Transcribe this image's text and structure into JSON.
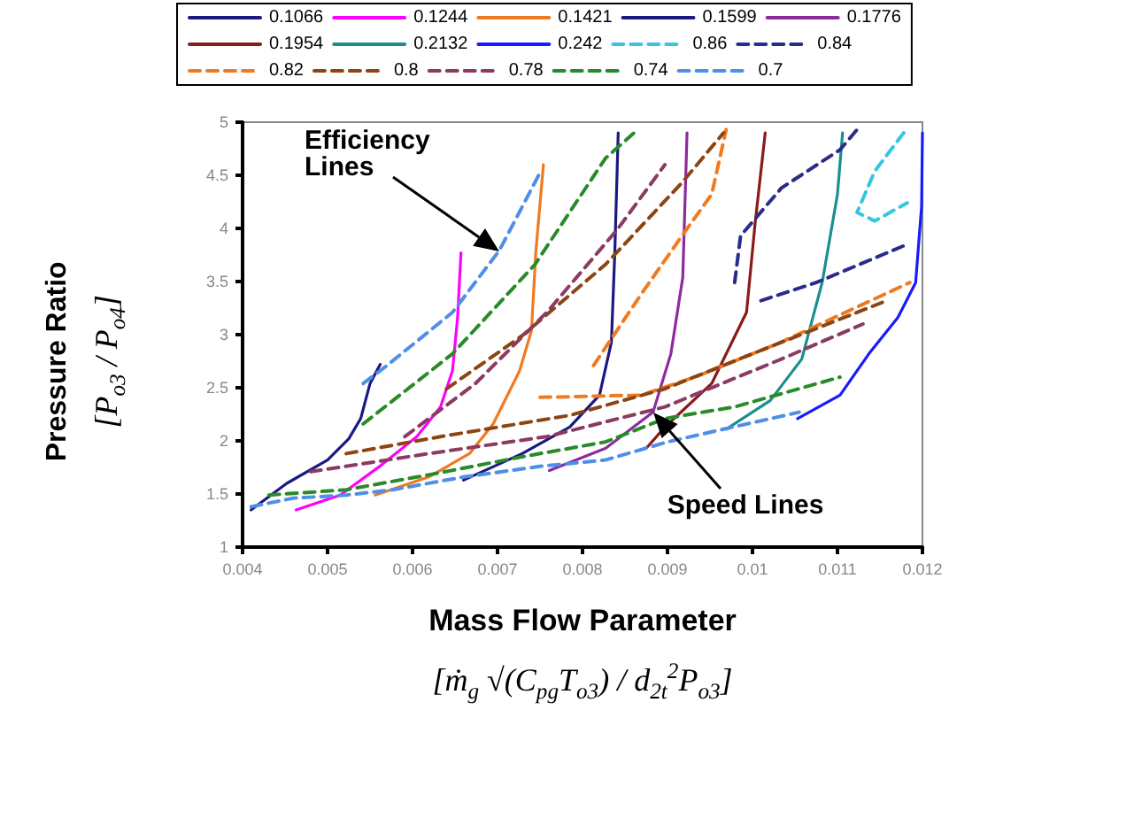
{
  "chart_data": {
    "type": "line",
    "xlabel": "Mass Flow Parameter [ṁ$_{g}$ √(C$_{pg}$T$_{o3}$) / d$_{2t}$$^{2}$P$_{o3}$]",
    "ylabel": "Pressure Ratio [P$_{o3}$ / P$_{o4}$]",
    "xlim": [
      0.004,
      0.012
    ],
    "xticks": [
      0.004,
      0.005,
      0.006,
      0.007,
      0.008,
      0.009,
      0.01,
      0.011,
      0.012
    ],
    "ylim": [
      1,
      5
    ],
    "yticks": [
      1,
      1.5,
      2,
      2.5,
      3,
      3.5,
      4,
      4.5,
      5
    ],
    "grid": false,
    "legend": "top",
    "marker": "none",
    "line_style": "solid",
    "annotations": [
      "Efficiency Lines",
      {
        "text": "Speed Lines",
        "x": 0.00883,
        "y": 2.27
      }
    ],
    "series": [
      {
        "name": "0.1066",
        "color": "#1a1a80",
        "x": [
          0.0041,
          0.00452,
          0.005,
          0.00525,
          0.00539,
          0.0055,
          0.00562
        ],
        "values": [
          1.35,
          1.6,
          1.82,
          2.02,
          2.21,
          2.54,
          2.72
        ]
      },
      {
        "name": "0.1244",
        "color": "#ff00ff",
        "x": [
          0.00463,
          0.00515,
          0.00563,
          0.00605,
          0.00633,
          0.00647,
          0.00653,
          0.00657
        ],
        "values": [
          1.35,
          1.49,
          1.77,
          2.04,
          2.32,
          2.66,
          3.16,
          3.77
        ]
      },
      {
        "name": "0.1421",
        "color": "#f07a20",
        "x": [
          0.00556,
          0.00619,
          0.00667,
          0.00695,
          0.00726,
          0.0074,
          0.00745,
          0.00754
        ],
        "values": [
          1.49,
          1.66,
          1.88,
          2.16,
          2.66,
          3.04,
          3.77,
          4.6
        ]
      },
      {
        "name": "0.1599",
        "color": "#1a1a80",
        "x": [
          0.0066,
          0.00729,
          0.00785,
          0.0082,
          0.00834,
          0.00838,
          0.00842
        ],
        "values": [
          1.63,
          1.88,
          2.13,
          2.43,
          2.93,
          3.77,
          4.9
        ]
      },
      {
        "name": "0.1776",
        "color": "#8e2a9e",
        "x": [
          0.00761,
          0.00827,
          0.00883,
          0.00904,
          0.00918,
          0.00923
        ],
        "values": [
          1.72,
          1.93,
          2.27,
          2.82,
          3.54,
          4.9
        ]
      },
      {
        "name": "0.1954",
        "color": "#8b1a1a",
        "x": [
          0.00876,
          0.00897,
          0.00952,
          0.00993,
          0.01003,
          0.01015
        ],
        "values": [
          1.94,
          2.13,
          2.54,
          3.21,
          4.04,
          4.9
        ]
      },
      {
        "name": "0.2132",
        "color": "#1a8f8f",
        "x": [
          0.00969,
          0.01021,
          0.01058,
          0.01082,
          0.011,
          0.01106
        ],
        "values": [
          2.11,
          2.38,
          2.77,
          3.49,
          4.32,
          4.9
        ]
      },
      {
        "name": "0.242",
        "color": "#1a1aff",
        "x": [
          0.01053,
          0.01103,
          0.01137,
          0.01171,
          0.01192,
          0.01199,
          0.012
        ],
        "values": [
          2.21,
          2.43,
          2.82,
          3.16,
          3.49,
          4.21,
          4.9
        ]
      },
      {
        "name": "0.86",
        "color": "#35c7e0",
        "line_style": "dashed",
        "x": [
          0.01178,
          0.01144,
          0.01123,
          0.01144,
          0.01182
        ],
        "values": [
          4.9,
          4.54,
          4.15,
          4.07,
          4.24
        ]
      },
      {
        "name": "0.84",
        "color": "#2b2b8a",
        "line_style": "dashed",
        "x": [
          0.0101,
          0.01075,
          0.01182,
          null,
          0.00979,
          0.00986,
          0.01034,
          0.01103,
          0.01123
        ],
        "values": [
          3.32,
          3.49,
          3.85,
          null,
          3.49,
          3.93,
          4.38,
          4.74,
          4.93
        ]
      },
      {
        "name": "0.82",
        "color": "#f07a20",
        "line_style": "dashed",
        "x": [
          0.0075,
          0.00869,
          0.00932,
          0.01034,
          0.01185,
          null,
          0.00813,
          0.00869,
          0.00917,
          0.00952,
          0.00969
        ],
        "values": [
          2.41,
          2.43,
          2.6,
          2.93,
          3.49,
          null,
          2.71,
          3.38,
          3.93,
          4.32,
          4.93
        ]
      },
      {
        "name": "0.8",
        "color": "#8b4513",
        "line_style": "dashed",
        "x": [
          0.00522,
          0.00633,
          0.00785,
          0.00897,
          0.01,
          0.01158,
          null,
          0.0064,
          0.00729,
          0.00827,
          0.00917,
          0.00966
        ],
        "values": [
          1.88,
          2.04,
          2.24,
          2.49,
          2.82,
          3.32,
          null,
          2.49,
          2.99,
          3.66,
          4.43,
          4.9
        ]
      },
      {
        "name": "0.78",
        "color": "#8b3a62",
        "line_style": "dashed",
        "x": [
          0.0048,
          0.00619,
          0.00758,
          0.00897,
          0.01034,
          0.0113,
          null,
          0.00591,
          0.00674,
          0.00758,
          0.00841,
          0.00897
        ],
        "values": [
          1.71,
          1.88,
          2.04,
          2.32,
          2.77,
          3.1,
          null,
          2.04,
          2.54,
          3.21,
          3.99,
          4.6
        ]
      },
      {
        "name": "0.74",
        "color": "#2a8a2a",
        "line_style": "dashed",
        "x": [
          0.00431,
          0.00522,
          0.00619,
          0.00729,
          0.00827,
          0.00897,
          0.00979,
          0.01103,
          null,
          0.00542,
          0.00647,
          0.00744,
          0.00827,
          0.00865
        ],
        "values": [
          1.49,
          1.54,
          1.68,
          1.85,
          1.99,
          2.21,
          2.32,
          2.6,
          null,
          2.16,
          2.82,
          3.66,
          4.66,
          4.93
        ]
      },
      {
        "name": "0.7",
        "color": "#4f8fe6",
        "line_style": "dashed",
        "x": [
          0.0041,
          0.00459,
          0.00522,
          0.00577,
          0.0066,
          0.0075,
          0.00827,
          0.009,
          0.00966,
          0.01055,
          null,
          0.00542,
          0.0057,
          0.00647,
          0.00702,
          0.00751
        ],
        "values": [
          1.38,
          1.46,
          1.49,
          1.54,
          1.66,
          1.76,
          1.82,
          1.99,
          2.11,
          2.27,
          null,
          2.54,
          2.71,
          3.21,
          3.79,
          4.54
        ]
      }
    ]
  }
}
